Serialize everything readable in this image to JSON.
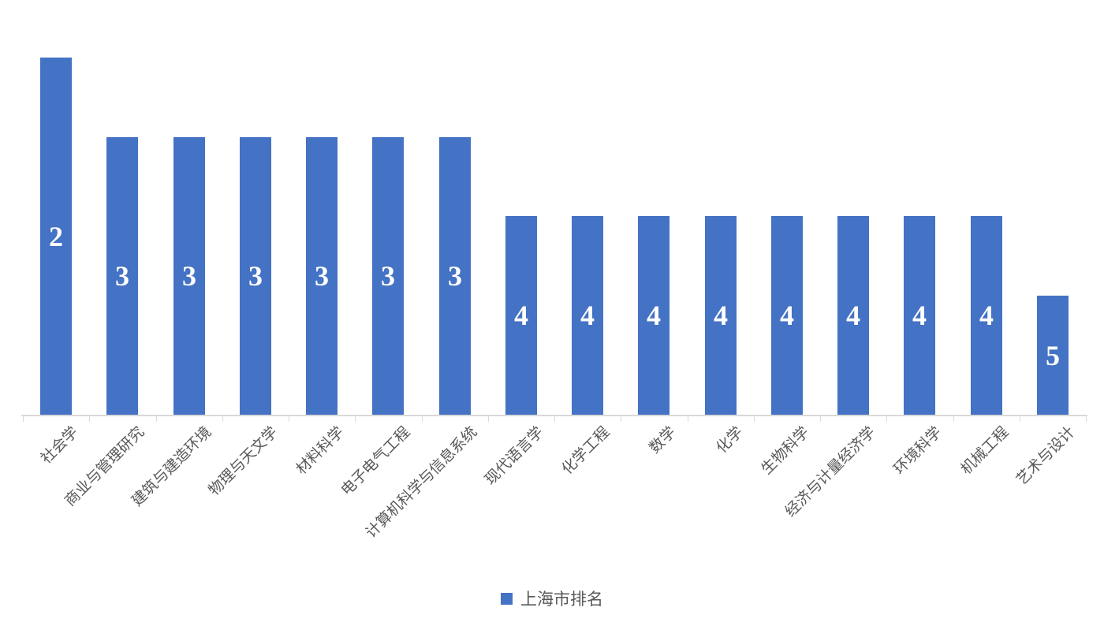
{
  "chart_data": {
    "type": "bar",
    "categories": [
      "社会学",
      "商业与管理研究",
      "建筑与建造环境",
      "物理与天文学",
      "材料科学",
      "电子电气工程",
      "计算机科学与信息系统",
      "现代语言学",
      "化学工程",
      "数学",
      "化学",
      "生物科学",
      "经济与计量经济学",
      "环境科学",
      "机械工程",
      "艺术与设计"
    ],
    "values": [
      2,
      3,
      3,
      3,
      3,
      3,
      3,
      4,
      4,
      4,
      4,
      4,
      4,
      4,
      4,
      5
    ],
    "series": [
      {
        "name": "上海市排名",
        "values": [
          2,
          3,
          3,
          3,
          3,
          3,
          3,
          4,
          4,
          4,
          4,
          4,
          4,
          4,
          4,
          5
        ]
      }
    ],
    "title": "",
    "xlabel": "",
    "ylabel": "",
    "data_labels_shown": true,
    "data_label_position": "inside-center",
    "value_axis": {
      "visible": false,
      "inverted": true,
      "note": "smaller rank drawn as taller bar",
      "effective_range": [
        6.5,
        0
      ]
    },
    "grid": false,
    "legend": {
      "label": "上海市排名",
      "position": "bottom"
    },
    "colors": {
      "bar": "#4472C4",
      "data_label": "#FFFFFF",
      "axis_line": "#D9D9D9",
      "category_text": "#595959",
      "legend_text": "#595959",
      "background": "#FFFFFF"
    }
  }
}
